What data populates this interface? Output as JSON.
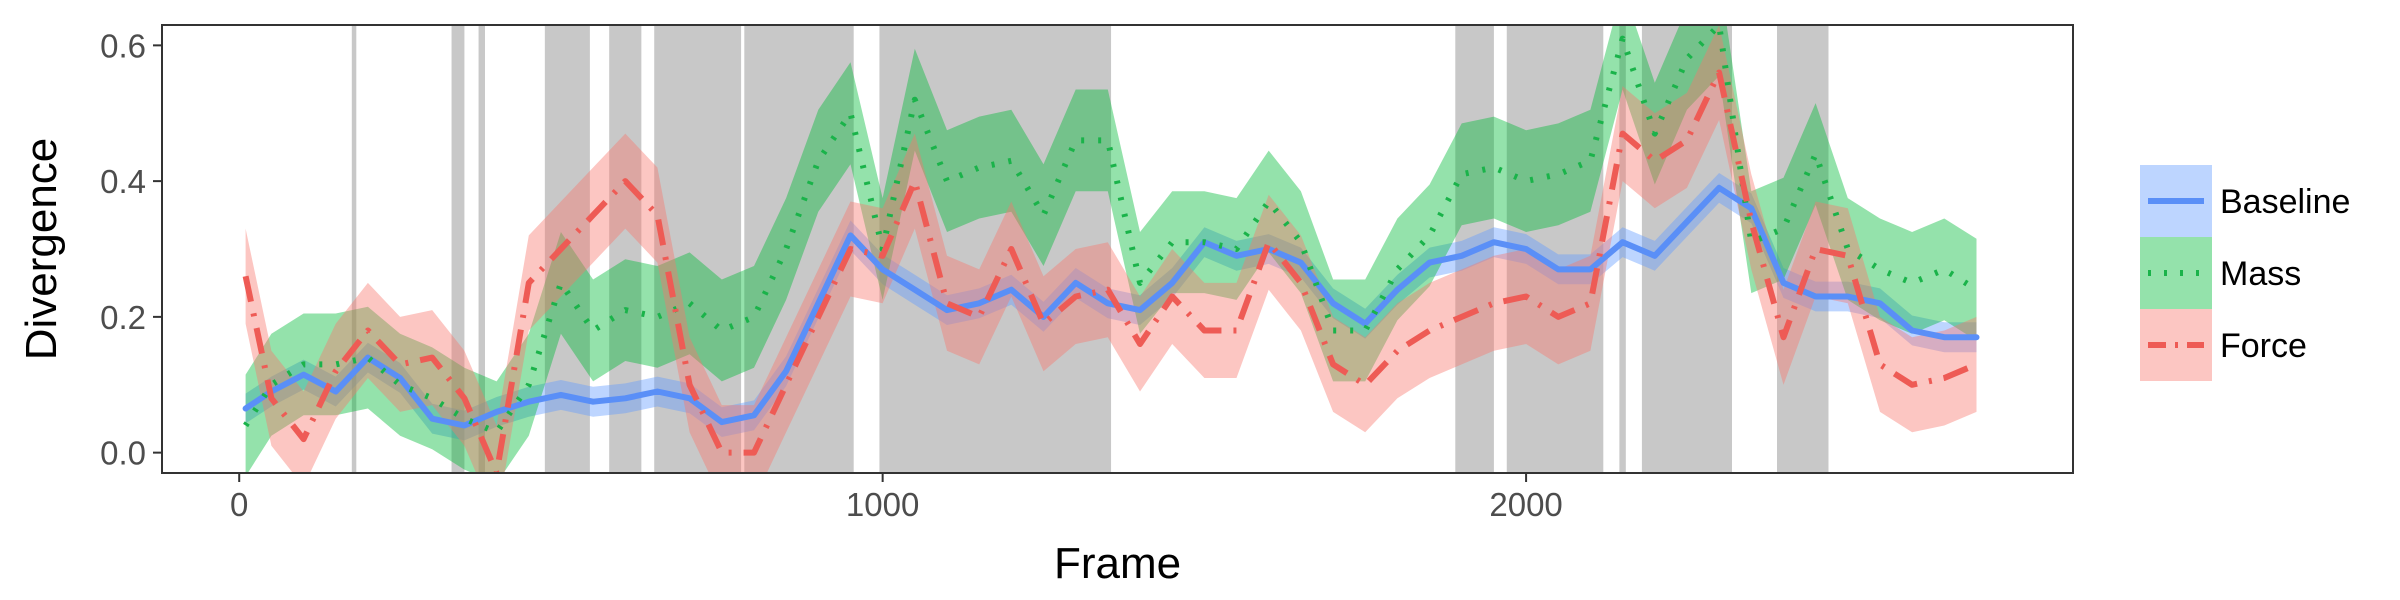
{
  "chart_data": {
    "type": "line",
    "xlabel": "Frame",
    "ylabel": "Divergence",
    "xlim": [
      -120,
      2850
    ],
    "ylim": [
      -0.03,
      0.63
    ],
    "x_ticks": [
      0,
      1000,
      2000
    ],
    "x_tick_labels": [
      "0",
      "1000",
      "2000"
    ],
    "y_ticks": [
      0.0,
      0.2,
      0.4,
      0.6
    ],
    "y_tick_labels": [
      "0.0",
      "0.2",
      "0.4",
      "0.6"
    ],
    "grid": false,
    "legend_position": "right",
    "shaded_intervals": [
      [
        175,
        182
      ],
      [
        330,
        350
      ],
      [
        372,
        382
      ],
      [
        475,
        545
      ],
      [
        575,
        625
      ],
      [
        645,
        780
      ],
      [
        785,
        955
      ],
      [
        995,
        1355
      ],
      [
        1890,
        1950
      ],
      [
        1970,
        2120
      ],
      [
        2145,
        2155
      ],
      [
        2180,
        2320
      ],
      [
        2390,
        2470
      ]
    ],
    "shade_color": "#c8c8c8",
    "x": [
      10,
      50,
      100,
      150,
      200,
      250,
      300,
      350,
      400,
      450,
      500,
      550,
      600,
      650,
      700,
      750,
      800,
      850,
      900,
      950,
      1000,
      1050,
      1100,
      1150,
      1200,
      1250,
      1300,
      1350,
      1400,
      1450,
      1500,
      1550,
      1600,
      1650,
      1700,
      1750,
      1800,
      1850,
      1900,
      1950,
      2000,
      2050,
      2100,
      2150,
      2200,
      2250,
      2300,
      2350,
      2400,
      2450,
      2500,
      2550,
      2600,
      2650,
      2700
    ],
    "series": [
      {
        "name": "Baseline",
        "color": "#619cff",
        "line_color": "#5a8ff7",
        "dash": "solid",
        "values": [
          0.065,
          0.09,
          0.115,
          0.09,
          0.14,
          0.11,
          0.05,
          0.04,
          0.06,
          0.075,
          0.085,
          0.075,
          0.08,
          0.09,
          0.08,
          0.045,
          0.055,
          0.12,
          0.22,
          0.32,
          0.27,
          0.24,
          0.21,
          0.22,
          0.24,
          0.2,
          0.25,
          0.22,
          0.21,
          0.25,
          0.31,
          0.29,
          0.3,
          0.28,
          0.22,
          0.19,
          0.24,
          0.28,
          0.29,
          0.31,
          0.3,
          0.27,
          0.27,
          0.31,
          0.29,
          0.34,
          0.39,
          0.36,
          0.25,
          0.23,
          0.23,
          0.22,
          0.18,
          0.17,
          0.17
        ],
        "band": 0.022
      },
      {
        "name": "Mass",
        "color": "#00ba38",
        "line_color": "#1ab34a",
        "dash": "dotted",
        "values": [
          0.04,
          0.1,
          0.13,
          0.13,
          0.14,
          0.1,
          0.08,
          0.05,
          0.03,
          0.1,
          0.25,
          0.18,
          0.21,
          0.2,
          0.22,
          0.18,
          0.2,
          0.3,
          0.43,
          0.5,
          0.3,
          0.52,
          0.4,
          0.42,
          0.43,
          0.35,
          0.46,
          0.46,
          0.25,
          0.31,
          0.31,
          0.3,
          0.37,
          0.31,
          0.18,
          0.18,
          0.27,
          0.32,
          0.41,
          0.42,
          0.4,
          0.41,
          0.43,
          0.61,
          0.47,
          0.58,
          0.63,
          0.31,
          0.33,
          0.44,
          0.3,
          0.27,
          0.25,
          0.27,
          0.24
        ],
        "band": 0.075
      },
      {
        "name": "Force",
        "color": "#f8766d",
        "line_color": "#ee5b55",
        "dash": "dashdot",
        "values": [
          0.26,
          0.08,
          0.02,
          0.12,
          0.18,
          0.13,
          0.14,
          0.08,
          -0.03,
          0.25,
          0.3,
          0.35,
          0.4,
          0.35,
          0.1,
          0.0,
          0.0,
          0.1,
          0.2,
          0.3,
          0.29,
          0.4,
          0.22,
          0.2,
          0.3,
          0.19,
          0.23,
          0.24,
          0.16,
          0.23,
          0.18,
          0.18,
          0.31,
          0.25,
          0.13,
          0.1,
          0.15,
          0.18,
          0.2,
          0.22,
          0.23,
          0.2,
          0.22,
          0.47,
          0.43,
          0.46,
          0.56,
          0.34,
          0.17,
          0.3,
          0.29,
          0.13,
          0.1,
          0.11,
          0.13
        ],
        "band": 0.07
      }
    ]
  }
}
